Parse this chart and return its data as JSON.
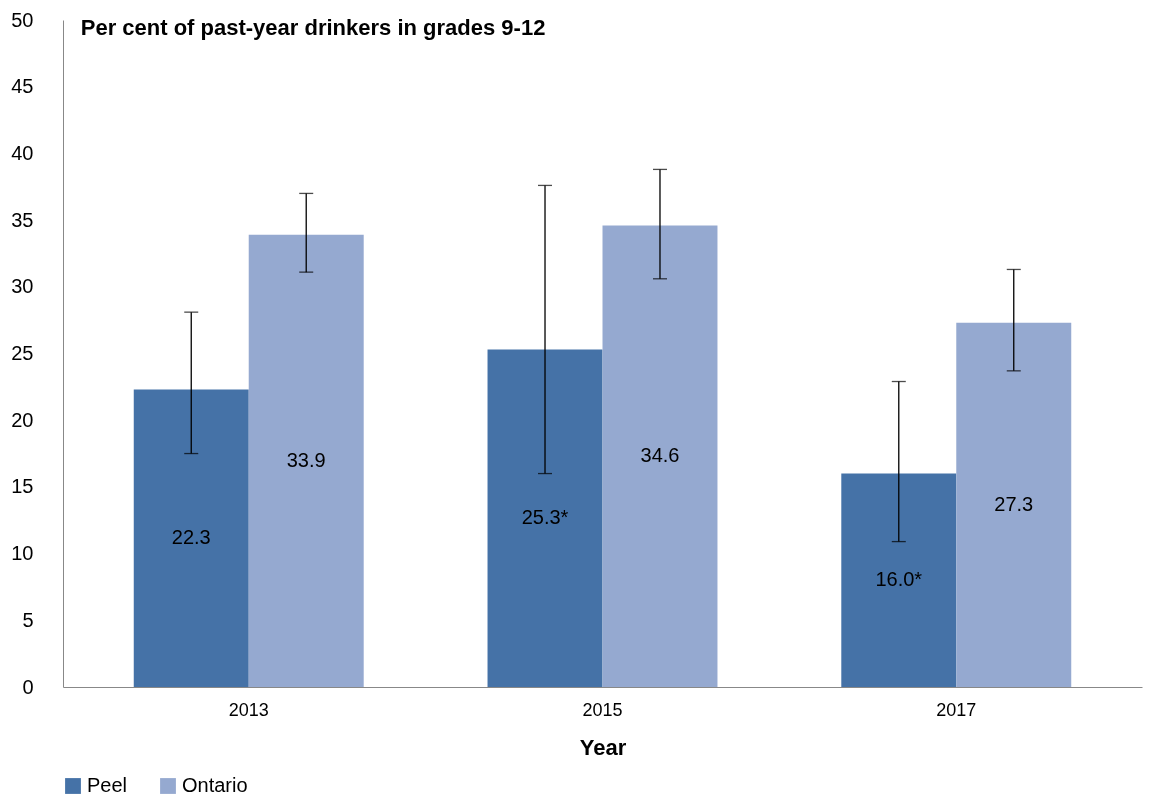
{
  "chart_data": {
    "type": "bar",
    "title": "Per cent of past-year drinkers in grades 9-12",
    "xlabel": "Year",
    "categories": [
      "2013",
      "2015",
      "2017"
    ],
    "series": [
      {
        "name": "Peel",
        "color": "#4572a7",
        "values": [
          22.3,
          25.3,
          16.0
        ],
        "value_labels": [
          "22.3",
          "25.3*",
          "16.0*"
        ],
        "errors": [
          [
            17.5,
            28.1
          ],
          [
            16.0,
            37.6
          ],
          [
            10.9,
            22.9
          ]
        ]
      },
      {
        "name": "Ontario",
        "color": "#95a9d0",
        "values": [
          33.9,
          34.6,
          27.3
        ],
        "value_labels": [
          "33.9",
          "34.6",
          "27.3"
        ],
        "errors": [
          [
            31.1,
            37.0
          ],
          [
            30.6,
            38.8
          ],
          [
            23.7,
            31.3
          ]
        ]
      }
    ],
    "ylim": [
      0,
      50
    ],
    "yticks": [
      0,
      5,
      10,
      15,
      20,
      25,
      30,
      35,
      40,
      45,
      50
    ],
    "grid": false,
    "legend": "bottom"
  }
}
